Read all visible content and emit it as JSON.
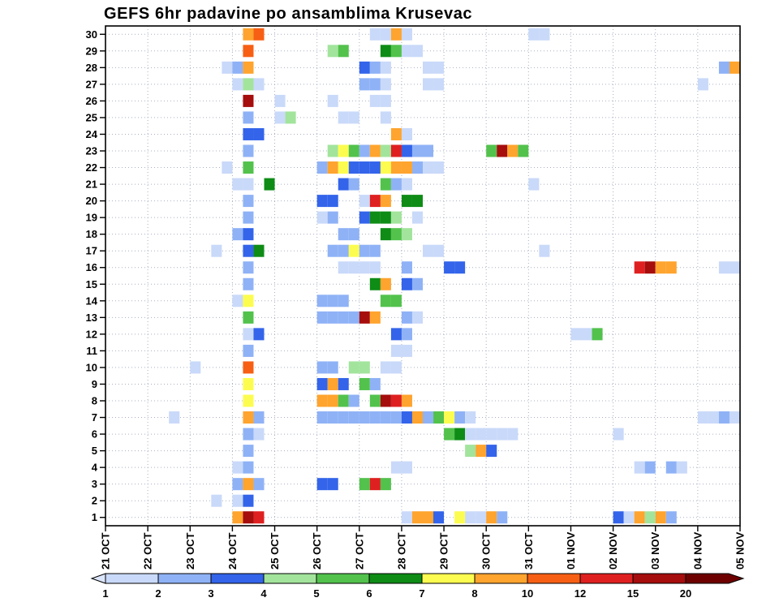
{
  "title": "GEFS 6hr padavine po ansamblima Krusevac",
  "chart_data": {
    "type": "heatmap",
    "title": "GEFS 6hr padavine po ansamblima Krusevac",
    "x_axis": {
      "labels": [
        "21 OCT",
        "22 OCT",
        "23 OCT",
        "24 OCT",
        "25 OCT",
        "26 OCT",
        "27 OCT",
        "28 OCT",
        "29 OCT",
        "30 OCT",
        "31 OCT",
        "01 NOV",
        "02 NOV",
        "03 NOV",
        "04 NOV",
        "05 NOV"
      ],
      "steps_per_day": 4,
      "step_hours": 6
    },
    "y_axis": {
      "labels": [
        "30",
        "29",
        "28",
        "27",
        "26",
        "25",
        "24",
        "23",
        "22",
        "21",
        "20",
        "19",
        "18",
        "17",
        "16",
        "15",
        "14",
        "13",
        "12",
        "11",
        "10",
        "9",
        "8",
        "7",
        "6",
        "5",
        "4",
        "3",
        "2",
        "1"
      ],
      "meaning": "ensemble member"
    },
    "grid": {
      "vlines_per_day": true,
      "hlines_per_row": true,
      "style": "dotted"
    },
    "legend": {
      "position": "bottom",
      "labels": [
        "1",
        "2",
        "3",
        "4",
        "5",
        "6",
        "7",
        "8",
        "10",
        "12",
        "15",
        "20"
      ],
      "thresholds": [
        1,
        2,
        3,
        4,
        5,
        6,
        7,
        8,
        10,
        12,
        15,
        20
      ],
      "below_color": "#dbe6fc",
      "palette": [
        "#c9d9f9",
        "#8fb2f6",
        "#3364ea",
        "#a2e49c",
        "#52c24c",
        "#0e8c16",
        "#fcfc50",
        "#ffa42e",
        "#f75f14",
        "#df2020",
        "#a60d0d",
        "#6e0000"
      ]
    },
    "cells_format": [
      "ensemble_member",
      "time_step_6h_from_21OCT00",
      "precip_mm_estimate"
    ],
    "cells": [
      [
        30,
        13,
        9
      ],
      [
        30,
        14,
        11
      ],
      [
        30,
        25,
        1.5
      ],
      [
        30,
        26,
        1.5
      ],
      [
        30,
        27,
        9
      ],
      [
        30,
        28,
        1.5
      ],
      [
        30,
        40,
        1.5
      ],
      [
        30,
        41,
        1.5
      ],
      [
        29,
        13,
        11
      ],
      [
        29,
        21,
        4.5
      ],
      [
        29,
        22,
        5.5
      ],
      [
        29,
        26,
        6.5
      ],
      [
        29,
        27,
        5.5
      ],
      [
        29,
        28,
        1.5
      ],
      [
        29,
        29,
        1.5
      ],
      [
        28,
        11,
        1.5
      ],
      [
        28,
        12,
        2.5
      ],
      [
        28,
        13,
        9
      ],
      [
        28,
        24,
        3.5
      ],
      [
        28,
        25,
        2.5
      ],
      [
        28,
        26,
        1.5
      ],
      [
        28,
        30,
        1.5
      ],
      [
        28,
        31,
        1.5
      ],
      [
        28,
        58,
        2.5
      ],
      [
        28,
        59,
        9
      ],
      [
        27,
        12,
        1.5
      ],
      [
        27,
        13,
        4.5
      ],
      [
        27,
        14,
        1.5
      ],
      [
        27,
        24,
        2.5
      ],
      [
        27,
        25,
        2.5
      ],
      [
        27,
        26,
        1.5
      ],
      [
        27,
        30,
        1.5
      ],
      [
        27,
        31,
        1.5
      ],
      [
        27,
        56,
        1.5
      ],
      [
        26,
        13,
        17
      ],
      [
        26,
        16,
        1.5
      ],
      [
        26,
        21,
        1.5
      ],
      [
        26,
        25,
        1.5
      ],
      [
        26,
        26,
        1.5
      ],
      [
        25,
        13,
        2.5
      ],
      [
        25,
        16,
        1.5
      ],
      [
        25,
        17,
        4.5
      ],
      [
        25,
        22,
        1.5
      ],
      [
        25,
        23,
        1.5
      ],
      [
        25,
        26,
        1.5
      ],
      [
        24,
        13,
        3.5
      ],
      [
        24,
        14,
        3.5
      ],
      [
        24,
        27,
        9
      ],
      [
        24,
        28,
        1.5
      ],
      [
        23,
        13,
        2.5
      ],
      [
        23,
        21,
        4.5
      ],
      [
        23,
        22,
        7.5
      ],
      [
        23,
        23,
        5.5
      ],
      [
        23,
        24,
        2.5
      ],
      [
        23,
        25,
        9
      ],
      [
        23,
        26,
        4.5
      ],
      [
        23,
        27,
        13
      ],
      [
        23,
        28,
        3.5
      ],
      [
        23,
        29,
        2.5
      ],
      [
        23,
        30,
        2.5
      ],
      [
        23,
        36,
        5.5
      ],
      [
        23,
        37,
        17
      ],
      [
        23,
        38,
        9
      ],
      [
        23,
        39,
        5.5
      ],
      [
        22,
        11,
        1.5
      ],
      [
        22,
        13,
        5.5
      ],
      [
        22,
        20,
        2.5
      ],
      [
        22,
        21,
        9
      ],
      [
        22,
        22,
        7.5
      ],
      [
        22,
        23,
        3.5
      ],
      [
        22,
        24,
        3.5
      ],
      [
        22,
        25,
        3.5
      ],
      [
        22,
        26,
        7.5
      ],
      [
        22,
        27,
        9
      ],
      [
        22,
        28,
        9
      ],
      [
        22,
        29,
        2.5
      ],
      [
        22,
        30,
        1.5
      ],
      [
        22,
        31,
        1.5
      ],
      [
        21,
        12,
        1.5
      ],
      [
        21,
        13,
        1.5
      ],
      [
        21,
        15,
        6.5
      ],
      [
        21,
        22,
        3.5
      ],
      [
        21,
        23,
        2.5
      ],
      [
        21,
        26,
        5.5
      ],
      [
        21,
        27,
        2.5
      ],
      [
        21,
        28,
        1.5
      ],
      [
        21,
        40,
        1.5
      ],
      [
        20,
        13,
        2.5
      ],
      [
        20,
        20,
        3.5
      ],
      [
        20,
        21,
        3.5
      ],
      [
        20,
        24,
        1.5
      ],
      [
        20,
        25,
        13
      ],
      [
        20,
        26,
        9
      ],
      [
        20,
        28,
        6.5
      ],
      [
        20,
        29,
        6.5
      ],
      [
        19,
        13,
        2.5
      ],
      [
        19,
        20,
        1.5
      ],
      [
        19,
        21,
        2.5
      ],
      [
        19,
        24,
        3.5
      ],
      [
        19,
        25,
        6.5
      ],
      [
        19,
        26,
        6.5
      ],
      [
        19,
        27,
        4.5
      ],
      [
        19,
        29,
        1.5
      ],
      [
        18,
        12,
        2.5
      ],
      [
        18,
        13,
        3.5
      ],
      [
        18,
        22,
        2.5
      ],
      [
        18,
        23,
        2.5
      ],
      [
        18,
        26,
        6.5
      ],
      [
        18,
        27,
        5.5
      ],
      [
        18,
        28,
        4.5
      ],
      [
        17,
        10,
        1.5
      ],
      [
        17,
        13,
        3.5
      ],
      [
        17,
        14,
        6.5
      ],
      [
        17,
        21,
        2.5
      ],
      [
        17,
        22,
        2.5
      ],
      [
        17,
        23,
        7.5
      ],
      [
        17,
        24,
        2.5
      ],
      [
        17,
        25,
        2.5
      ],
      [
        17,
        30,
        1.5
      ],
      [
        17,
        31,
        1.5
      ],
      [
        17,
        41,
        1.5
      ],
      [
        16,
        13,
        2.5
      ],
      [
        16,
        22,
        1.5
      ],
      [
        16,
        23,
        1.5
      ],
      [
        16,
        24,
        1.5
      ],
      [
        16,
        25,
        1.5
      ],
      [
        16,
        28,
        2.5
      ],
      [
        16,
        32,
        3.5
      ],
      [
        16,
        33,
        3.5
      ],
      [
        16,
        50,
        13
      ],
      [
        16,
        51,
        17
      ],
      [
        16,
        52,
        9
      ],
      [
        16,
        53,
        9
      ],
      [
        16,
        58,
        1.5
      ],
      [
        16,
        59,
        1.5
      ],
      [
        15,
        13,
        2.5
      ],
      [
        15,
        25,
        6.5
      ],
      [
        15,
        26,
        9
      ],
      [
        15,
        28,
        3.5
      ],
      [
        15,
        29,
        2.5
      ],
      [
        14,
        12,
        1.5
      ],
      [
        14,
        13,
        7.5
      ],
      [
        14,
        20,
        2.5
      ],
      [
        14,
        21,
        2.5
      ],
      [
        14,
        22,
        2.5
      ],
      [
        14,
        26,
        5.5
      ],
      [
        14,
        27,
        5.5
      ],
      [
        13,
        13,
        5.5
      ],
      [
        13,
        20,
        2.5
      ],
      [
        13,
        21,
        2.5
      ],
      [
        13,
        22,
        2.5
      ],
      [
        13,
        23,
        2.5
      ],
      [
        13,
        24,
        17
      ],
      [
        13,
        25,
        9
      ],
      [
        13,
        28,
        2.5
      ],
      [
        13,
        29,
        1.5
      ],
      [
        12,
        13,
        1.5
      ],
      [
        12,
        14,
        3.5
      ],
      [
        12,
        27,
        3.5
      ],
      [
        12,
        28,
        2.5
      ],
      [
        12,
        44,
        1.5
      ],
      [
        12,
        45,
        1.5
      ],
      [
        12,
        46,
        5.5
      ],
      [
        11,
        13,
        2.5
      ],
      [
        11,
        27,
        1.5
      ],
      [
        11,
        28,
        1.5
      ],
      [
        10,
        8,
        1.5
      ],
      [
        10,
        13,
        11
      ],
      [
        10,
        20,
        2.5
      ],
      [
        10,
        21,
        2.5
      ],
      [
        10,
        23,
        4.5
      ],
      [
        10,
        24,
        4.5
      ],
      [
        10,
        26,
        1.5
      ],
      [
        10,
        27,
        1.5
      ],
      [
        9,
        13,
        7.5
      ],
      [
        9,
        20,
        3.5
      ],
      [
        9,
        21,
        9
      ],
      [
        9,
        22,
        3.5
      ],
      [
        9,
        24,
        5.5
      ],
      [
        9,
        25,
        2.5
      ],
      [
        8,
        13,
        7.5
      ],
      [
        8,
        20,
        9
      ],
      [
        8,
        21,
        9
      ],
      [
        8,
        22,
        5.5
      ],
      [
        8,
        23,
        2.5
      ],
      [
        8,
        25,
        5.5
      ],
      [
        8,
        26,
        17
      ],
      [
        8,
        27,
        13
      ],
      [
        8,
        28,
        9
      ],
      [
        7,
        6,
        1.5
      ],
      [
        7,
        13,
        9
      ],
      [
        7,
        14,
        2.5
      ],
      [
        7,
        20,
        2.5
      ],
      [
        7,
        21,
        2.5
      ],
      [
        7,
        22,
        2.5
      ],
      [
        7,
        23,
        2.5
      ],
      [
        7,
        24,
        2.5
      ],
      [
        7,
        25,
        2.5
      ],
      [
        7,
        26,
        2.5
      ],
      [
        7,
        27,
        2.5
      ],
      [
        7,
        28,
        3.5
      ],
      [
        7,
        29,
        9
      ],
      [
        7,
        30,
        2.5
      ],
      [
        7,
        31,
        5.5
      ],
      [
        7,
        32,
        7.5
      ],
      [
        7,
        33,
        2.5
      ],
      [
        7,
        34,
        1.5
      ],
      [
        7,
        56,
        1.5
      ],
      [
        7,
        57,
        1.5
      ],
      [
        7,
        58,
        2.5
      ],
      [
        7,
        59,
        1.5
      ],
      [
        6,
        13,
        2.5
      ],
      [
        6,
        14,
        1.5
      ],
      [
        6,
        32,
        5.5
      ],
      [
        6,
        33,
        6.5
      ],
      [
        6,
        34,
        1.5
      ],
      [
        6,
        35,
        1.5
      ],
      [
        6,
        36,
        1.5
      ],
      [
        6,
        37,
        1.5
      ],
      [
        6,
        38,
        1.5
      ],
      [
        6,
        48,
        1.5
      ],
      [
        5,
        13,
        2.5
      ],
      [
        5,
        34,
        4.5
      ],
      [
        5,
        35,
        9
      ],
      [
        5,
        36,
        3.5
      ],
      [
        4,
        12,
        1.5
      ],
      [
        4,
        13,
        2.5
      ],
      [
        4,
        27,
        1.5
      ],
      [
        4,
        28,
        1.5
      ],
      [
        4,
        50,
        1.5
      ],
      [
        4,
        51,
        2.5
      ],
      [
        4,
        53,
        2.5
      ],
      [
        4,
        54,
        1.5
      ],
      [
        3,
        12,
        2.5
      ],
      [
        3,
        13,
        9
      ],
      [
        3,
        14,
        2.5
      ],
      [
        3,
        20,
        3.5
      ],
      [
        3,
        21,
        3.5
      ],
      [
        3,
        24,
        5.5
      ],
      [
        3,
        25,
        13
      ],
      [
        3,
        26,
        5.5
      ],
      [
        2,
        10,
        1.5
      ],
      [
        2,
        12,
        1.5
      ],
      [
        2,
        13,
        3.5
      ],
      [
        1,
        12,
        9
      ],
      [
        1,
        13,
        17
      ],
      [
        1,
        14,
        13
      ],
      [
        1,
        28,
        1.5
      ],
      [
        1,
        29,
        9
      ],
      [
        1,
        30,
        9
      ],
      [
        1,
        31,
        3.5
      ],
      [
        1,
        33,
        7.5
      ],
      [
        1,
        34,
        1.5
      ],
      [
        1,
        35,
        1.5
      ],
      [
        1,
        36,
        9
      ],
      [
        1,
        37,
        2.5
      ],
      [
        1,
        48,
        3.5
      ],
      [
        1,
        49,
        1.5
      ],
      [
        1,
        50,
        9
      ],
      [
        1,
        51,
        4.5
      ],
      [
        1,
        52,
        9
      ],
      [
        1,
        53,
        2.5
      ]
    ]
  }
}
